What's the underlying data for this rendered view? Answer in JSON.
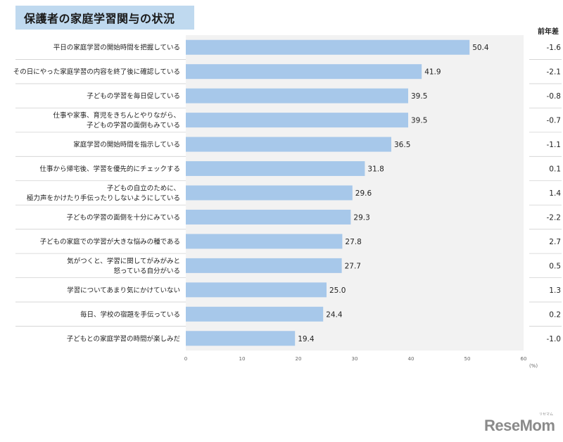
{
  "title": "保護者の家庭学習関与の状況",
  "diff_header": "前年差",
  "logo": {
    "text": "ReseMom",
    "small": "リセマム"
  },
  "colors": {
    "bar": "#a7c8ea",
    "plot_bg": "#f2f2f2",
    "title_bg": "#bfd9ef"
  },
  "chart_data": {
    "type": "bar",
    "orientation": "horizontal",
    "unit_label": "(%)",
    "xlim": [
      0,
      60
    ],
    "x_ticks": [
      0,
      10,
      20,
      30,
      40,
      50,
      60
    ],
    "categories": [
      [
        "平日の家庭学習の開始時間を把握している"
      ],
      [
        "その日にやった家庭学習の内容を終了後に確認している"
      ],
      [
        "子どもの学習を毎日促している"
      ],
      [
        "仕事や家事、育児をきちんとやりながら、",
        "子どもの学習の面倒もみている"
      ],
      [
        "家庭学習の開始時間を指示している"
      ],
      [
        "仕事から帰宅後、学習を優先的にチェックする"
      ],
      [
        "子どもの自立のために、",
        "極力声をかけたり手伝ったりしないようにしている"
      ],
      [
        "子どもの学習の面倒を十分にみている"
      ],
      [
        "子どもの家庭での学習が大きな悩みの種である"
      ],
      [
        "気がつくと、学習に関してがみがみと",
        "怒っている自分がいる"
      ],
      [
        "学習についてあまり気にかけていない"
      ],
      [
        "毎日、学校の宿題を手伝っている"
      ],
      [
        "子どもとの家庭学習の時間が楽しみだ"
      ]
    ],
    "values": [
      50.4,
      41.9,
      39.5,
      39.5,
      36.5,
      31.8,
      29.6,
      29.3,
      27.8,
      27.7,
      25.0,
      24.4,
      19.4
    ],
    "value_labels": [
      "50.4",
      "41.9",
      "39.5",
      "39.5",
      "36.5",
      "31.8",
      "29.6",
      "29.3",
      "27.8",
      "27.7",
      "25.0",
      "24.4",
      "19.4"
    ],
    "diffs": [
      "-1.6",
      "-2.1",
      "-0.8",
      "-0.7",
      "-1.1",
      "0.1",
      "1.4",
      "-2.2",
      "2.7",
      "0.5",
      "1.3",
      "0.2",
      "-1.0"
    ]
  }
}
